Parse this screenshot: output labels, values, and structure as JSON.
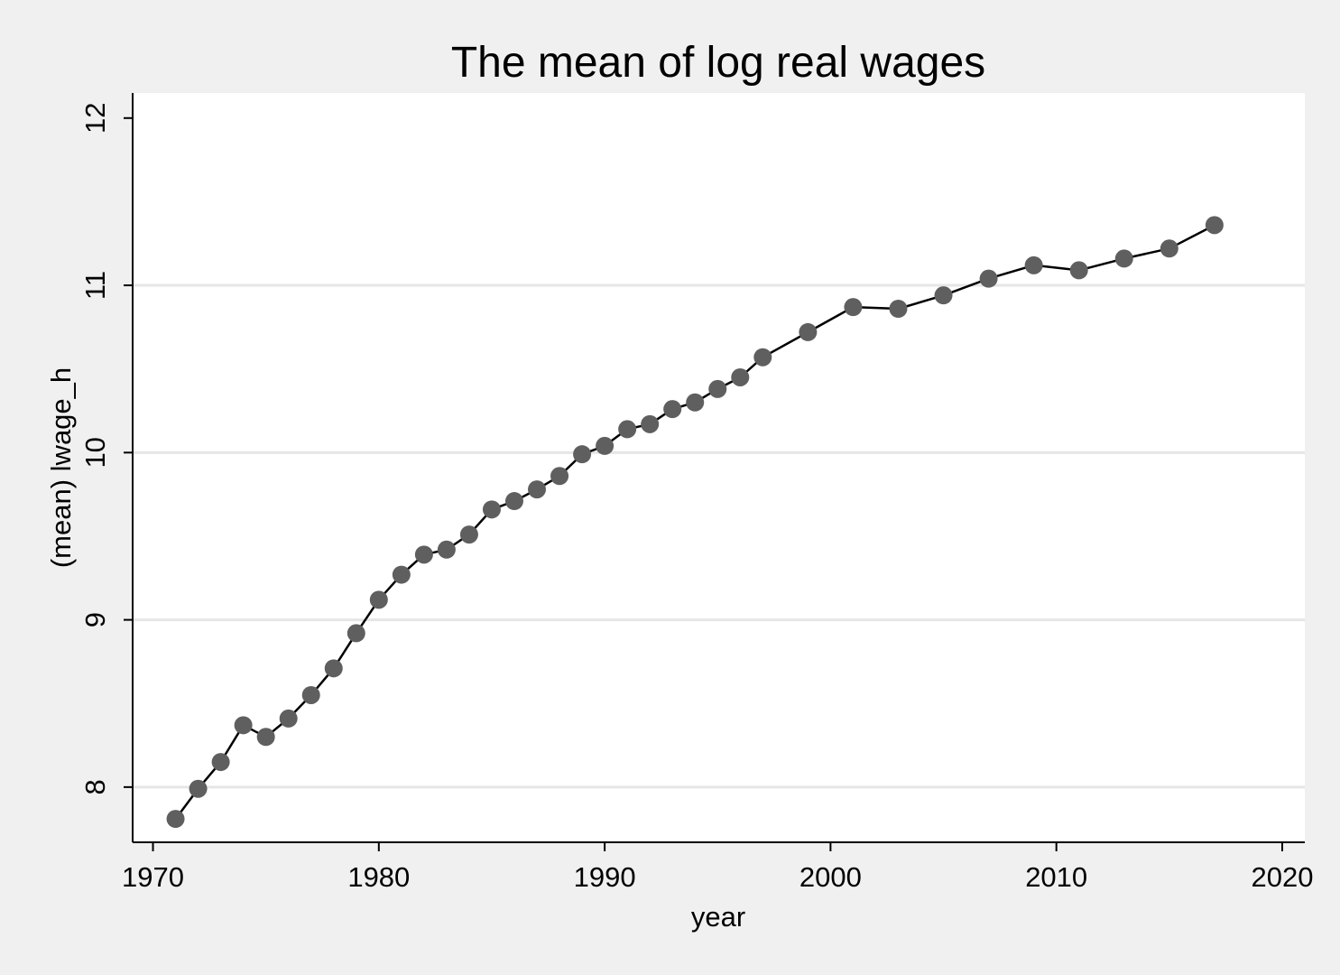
{
  "chart_data": {
    "type": "line",
    "title": "The mean of log real wages",
    "xlabel": "year",
    "ylabel": "(mean) lwage_h",
    "xlim": [
      1969.1,
      2021
    ],
    "ylim": [
      7.67,
      12.15
    ],
    "x_ticks": [
      1970,
      1980,
      1990,
      2000,
      2010,
      2020
    ],
    "y_ticks": [
      8,
      9,
      10,
      11,
      12
    ],
    "grid": true,
    "legend": "none",
    "colors": {
      "background": "#f0f0f0",
      "plot_area": "#ffffff",
      "line": "#000000",
      "marker": "#5f5f5f",
      "grid": "#e6e6e6"
    },
    "series": [
      {
        "x": [
          1971,
          1972,
          1973,
          1974,
          1975,
          1976,
          1977,
          1978,
          1979,
          1980,
          1981,
          1982,
          1983,
          1984,
          1985,
          1986,
          1987,
          1988,
          1989,
          1990,
          1991,
          1992,
          1993,
          1994,
          1995,
          1996,
          1997,
          1999,
          2001,
          2003,
          2005,
          2007,
          2009,
          2011,
          2013,
          2015,
          2017
        ],
        "y": [
          7.81,
          7.99,
          8.15,
          8.37,
          8.3,
          8.41,
          8.55,
          8.71,
          8.92,
          9.12,
          9.27,
          9.39,
          9.42,
          9.51,
          9.66,
          9.71,
          9.78,
          9.86,
          9.99,
          10.04,
          10.14,
          10.17,
          10.26,
          10.3,
          10.38,
          10.45,
          10.57,
          10.72,
          10.87,
          10.86,
          10.94,
          11.04,
          11.12,
          11.09,
          11.16,
          11.22,
          11.36
        ]
      }
    ]
  }
}
